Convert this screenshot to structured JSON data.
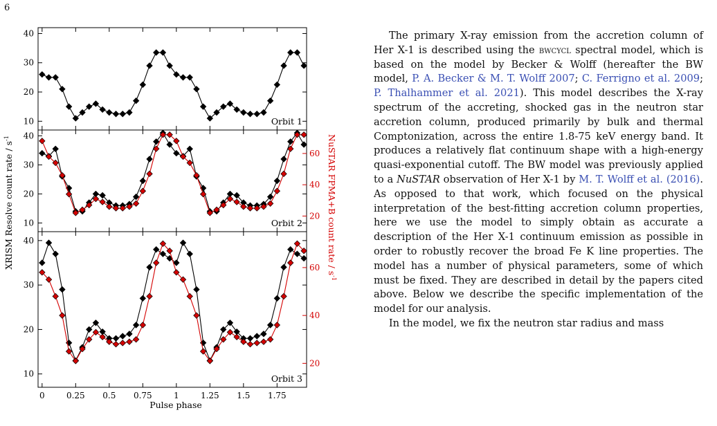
{
  "page_number": "6",
  "figure": {
    "y_left_label": "XRISM Resolve count rate / s",
    "y_left_unit_sup": "-1",
    "y_right_label": "NuSTAR FPMA+B count rate / s",
    "y_right_unit_sup": "-1",
    "x_label": "Pulse phase",
    "left_ticks": [
      "10",
      "20",
      "30",
      "40"
    ],
    "right_ticks": [
      "20",
      "40",
      "60"
    ],
    "x_ticks": [
      "0",
      "0.25",
      "0.5",
      "0.75",
      "1",
      "1.25",
      "1.5",
      "1.75"
    ],
    "panels": [
      {
        "label": "Orbit 1"
      },
      {
        "label": "Orbit 2"
      },
      {
        "label": "Orbit 3"
      }
    ],
    "colors": {
      "xrism": "#000000",
      "nustar": "#d40000"
    }
  },
  "chart_data": [
    {
      "type": "line",
      "panel": "Orbit 1",
      "xlabel": "Pulse phase",
      "ylabel": "XRISM Resolve count rate / s-1",
      "ylim": [
        7,
        42
      ],
      "x": [
        0.0,
        0.05,
        0.1,
        0.15,
        0.2,
        0.25,
        0.3,
        0.35,
        0.4,
        0.45,
        0.5,
        0.55,
        0.6,
        0.65,
        0.7,
        0.75,
        0.8,
        0.85,
        0.9,
        0.95,
        1.0,
        1.05,
        1.1,
        1.15,
        1.2,
        1.25,
        1.3,
        1.35,
        1.4,
        1.45,
        1.5,
        1.55,
        1.6,
        1.65,
        1.7,
        1.75,
        1.8,
        1.85,
        1.9,
        1.95
      ],
      "series": [
        {
          "name": "XRISM Resolve",
          "values": [
            26,
            25,
            25,
            21,
            15,
            11,
            13,
            15,
            16,
            14,
            13,
            12.5,
            12.5,
            13,
            17,
            22.5,
            29,
            33.5,
            33.5,
            29,
            26,
            25,
            25,
            21,
            15,
            11,
            13,
            15,
            16,
            14,
            13,
            12.5,
            12.5,
            13,
            17,
            22.5,
            29,
            33.5,
            33.5,
            29
          ]
        }
      ]
    },
    {
      "type": "line",
      "panel": "Orbit 2",
      "xlabel": "Pulse phase",
      "ylabel": "XRISM Resolve count rate / s-1",
      "y2label": "NuSTAR FPMA+B count rate / s-1",
      "ylim": [
        7,
        42
      ],
      "y2lim": [
        10,
        75
      ],
      "x": [
        0.0,
        0.05,
        0.1,
        0.15,
        0.2,
        0.25,
        0.3,
        0.35,
        0.4,
        0.45,
        0.5,
        0.55,
        0.6,
        0.65,
        0.7,
        0.75,
        0.8,
        0.85,
        0.9,
        0.95,
        1.0,
        1.05,
        1.1,
        1.15,
        1.2,
        1.25,
        1.3,
        1.35,
        1.4,
        1.45,
        1.5,
        1.55,
        1.6,
        1.65,
        1.7,
        1.75,
        1.8,
        1.85,
        1.9,
        1.95
      ],
      "series": [
        {
          "name": "XRISM Resolve",
          "axis": "left",
          "values": [
            34,
            33,
            35.5,
            26,
            22,
            14,
            14,
            17,
            20,
            19.5,
            17,
            16,
            16,
            16.5,
            19,
            24.5,
            32,
            38,
            41,
            37,
            34,
            33,
            35.5,
            26,
            22,
            14,
            14,
            17,
            20,
            19.5,
            17,
            16,
            16,
            16.5,
            19,
            24.5,
            32,
            38,
            41,
            37
          ]
        },
        {
          "name": "NuSTAR FPMA+B",
          "axis": "right",
          "values": [
            68,
            58,
            54,
            46,
            34,
            22,
            24,
            27,
            31,
            29,
            26,
            25,
            25,
            26,
            28,
            36,
            47,
            63,
            72,
            72,
            68,
            58,
            54,
            46,
            34,
            22,
            24,
            27,
            31,
            29,
            26,
            25,
            25,
            26,
            28,
            36,
            47,
            63,
            72,
            72
          ]
        }
      ]
    },
    {
      "type": "line",
      "panel": "Orbit 3",
      "xlabel": "Pulse phase",
      "ylabel": "XRISM Resolve count rate / s-1",
      "y2label": "NuSTAR FPMA+B count rate / s-1",
      "ylim": [
        7,
        42
      ],
      "y2lim": [
        10,
        75
      ],
      "x": [
        0.0,
        0.05,
        0.1,
        0.15,
        0.2,
        0.25,
        0.3,
        0.35,
        0.4,
        0.45,
        0.5,
        0.55,
        0.6,
        0.65,
        0.7,
        0.75,
        0.8,
        0.85,
        0.9,
        0.95,
        1.0,
        1.05,
        1.1,
        1.15,
        1.2,
        1.25,
        1.3,
        1.35,
        1.4,
        1.45,
        1.5,
        1.55,
        1.6,
        1.65,
        1.7,
        1.75,
        1.8,
        1.85,
        1.9,
        1.95
      ],
      "series": [
        {
          "name": "XRISM Resolve",
          "axis": "left",
          "values": [
            35,
            39.5,
            37,
            29,
            17,
            13,
            16,
            20,
            21.5,
            19.5,
            18,
            18,
            18.5,
            19,
            21,
            27,
            34,
            38,
            37,
            36,
            35,
            39.5,
            37,
            29,
            17,
            13,
            16,
            20,
            21.5,
            19.5,
            18,
            18,
            18.5,
            19,
            21,
            27,
            34,
            38,
            37,
            36
          ]
        },
        {
          "name": "NuSTAR FPMA+B",
          "axis": "right",
          "values": [
            58,
            55,
            48,
            40,
            25,
            21,
            26,
            30,
            33,
            31,
            29,
            28,
            28.5,
            29,
            30,
            36,
            48,
            62,
            70,
            67,
            58,
            55,
            48,
            40,
            25,
            21,
            26,
            30,
            33,
            31,
            29,
            28,
            28.5,
            29,
            30,
            36,
            48,
            62,
            70,
            67
          ]
        }
      ]
    }
  ],
  "text": {
    "p1_a": "The primary X-ray emission from the accretion column of Her X-1 is described using the ",
    "p1_model": "bwcycl",
    "p1_b": " spectral model, which is based on the model by Becker & Wolff (hereafter the BW model, ",
    "cite1": "P. A. Becker & M. T. Wolff 2007",
    "sep1": "; ",
    "cite2": "C. Ferrigno et al. 2009",
    "sep2": "; ",
    "cite3": "P. Thalhammer et al. 2021",
    "p1_c": "). This model describes the X-ray spectrum of the accreting, shocked gas in the neutron star accretion column, produced primarily by bulk and thermal Comptonization, across the entire 1.8-75 keV energy band. It produces a relatively flat continuum shape with a high-energy quasi-exponential cutoff. The BW model was previously applied to a ",
    "p1_nustar": "NuSTAR",
    "p1_d": " observation of Her X-1 by ",
    "cite4": "M. T. Wolff et al. (2016)",
    "p1_e": ". As opposed to that work, which focused on the physical interpretation of the best-fitting accretion column properties, here we use the model to simply obtain as accurate a description of the Her X-1 continuum emission as possible in order to robustly recover the broad Fe K line properties. The model has a number of physical parameters, some of which must be fixed. They are described in detail by the papers cited above. Below we describe the specific implementation of the model for our analysis.",
    "p2": "In the model, we fix the neutron star radius and mass"
  }
}
